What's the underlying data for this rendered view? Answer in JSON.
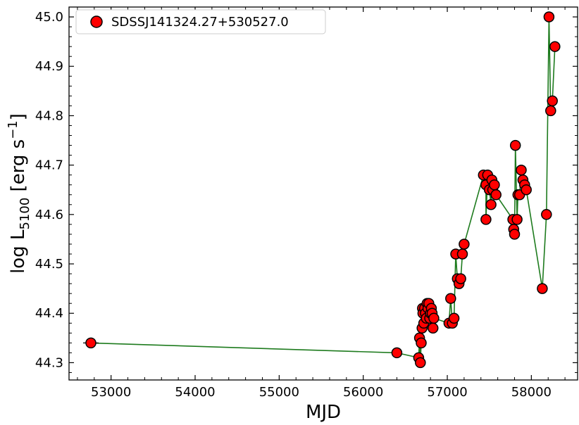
{
  "chart_data": {
    "type": "scatter",
    "xlabel": "MJD",
    "ylabel_main": "log L",
    "ylabel_sub": "5100",
    "ylabel_unit_pre": " [erg s",
    "ylabel_sup": "−1",
    "ylabel_unit_post": "]",
    "xlim": [
      52500,
      58550
    ],
    "ylim": [
      44.265,
      45.02
    ],
    "xticks": [
      53000,
      54000,
      55000,
      56000,
      57000,
      58000
    ],
    "yticks": [
      44.3,
      44.4,
      44.5,
      44.6,
      44.7,
      44.8,
      44.9,
      45.0
    ],
    "grid": false,
    "legend_position": "top-left",
    "series": [
      {
        "name": "SDSSJ141324.27+530527.0",
        "marker_color": "#ff0000",
        "marker_edge": "#000000",
        "line_color": "#1e7b1e",
        "x": [
          52760,
          56400,
          56660,
          56670,
          56680,
          56690,
          56700,
          56705,
          56710,
          56720,
          56730,
          56740,
          56750,
          56760,
          56770,
          56780,
          56790,
          56800,
          56810,
          56820,
          56830,
          56840,
          57020,
          57040,
          57060,
          57080,
          57100,
          57120,
          57140,
          57160,
          57180,
          57200,
          57430,
          57460,
          57460,
          57480,
          57500,
          57520,
          57530,
          57540,
          57560,
          57580,
          57780,
          57790,
          57800,
          57810,
          57830,
          57840,
          57860,
          57880,
          57900,
          57920,
          57940,
          58130,
          58180,
          58210,
          58230,
          58250,
          58280
        ],
        "y": [
          44.34,
          44.32,
          44.31,
          44.35,
          44.3,
          44.34,
          44.37,
          44.41,
          44.4,
          44.38,
          44.41,
          44.4,
          44.39,
          44.42,
          44.41,
          44.42,
          44.39,
          44.4,
          44.41,
          44.4,
          44.37,
          44.39,
          44.38,
          44.43,
          44.38,
          44.39,
          44.52,
          44.47,
          44.46,
          44.47,
          44.52,
          44.54,
          44.68,
          44.66,
          44.59,
          44.68,
          44.65,
          44.62,
          44.67,
          44.65,
          44.66,
          44.64,
          44.59,
          44.57,
          44.56,
          44.74,
          44.59,
          44.64,
          44.64,
          44.69,
          44.67,
          44.66,
          44.65,
          44.45,
          44.6,
          45.0,
          44.81,
          44.83,
          44.94
        ]
      }
    ]
  }
}
